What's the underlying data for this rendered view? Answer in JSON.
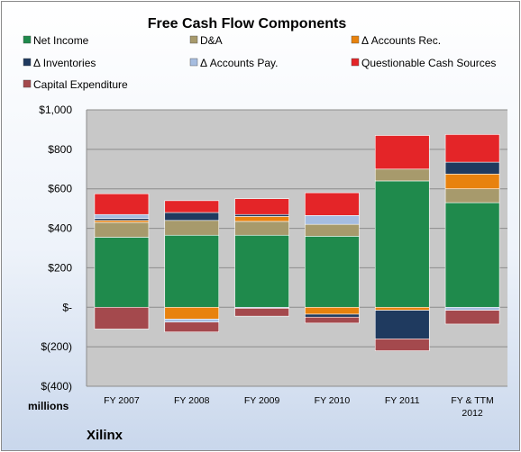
{
  "chart_data": {
    "type": "bar",
    "stacked": true,
    "title": "Free Cash Flow Components",
    "units_label": "millions",
    "company": "Xilinx",
    "grid": true,
    "legend_position": "top",
    "ylim": [
      -400,
      1000
    ],
    "yticks": [
      {
        "value": 1000,
        "label": "$1,000"
      },
      {
        "value": 800,
        "label": "$800"
      },
      {
        "value": 600,
        "label": "$600"
      },
      {
        "value": 400,
        "label": "$400"
      },
      {
        "value": 200,
        "label": "$200"
      },
      {
        "value": 0,
        "label": "$-"
      },
      {
        "value": -200,
        "label": "$(200)"
      },
      {
        "value": -400,
        "label": "$(400)"
      }
    ],
    "categories": [
      {
        "lines": [
          "FY 2007"
        ]
      },
      {
        "lines": [
          "FY 2008"
        ]
      },
      {
        "lines": [
          "FY 2009"
        ]
      },
      {
        "lines": [
          "FY 2010"
        ]
      },
      {
        "lines": [
          "FY 2011"
        ]
      },
      {
        "lines": [
          "FY & TTM",
          "2012"
        ]
      }
    ],
    "series": [
      {
        "name": "Net Income",
        "color": "#1f8a4c",
        "values": [
          355,
          365,
          365,
          360,
          640,
          530
        ]
      },
      {
        "name": "D&A",
        "color": "#a79a6c",
        "values": [
          75,
          75,
          70,
          60,
          60,
          70
        ]
      },
      {
        "name": "Δ Accounts Rec.",
        "color": "#e8820e",
        "values": [
          10,
          -60,
          25,
          -35,
          -15,
          75
        ]
      },
      {
        "name": "Δ Inventories",
        "color": "#1f3a5f",
        "values": [
          10,
          40,
          10,
          -15,
          -145,
          60
        ]
      },
      {
        "name": "Δ Accounts Pay.",
        "color": "#a6bde0",
        "values": [
          20,
          -15,
          -5,
          45,
          0,
          -15
        ]
      },
      {
        "name": "Questionable Cash Sources",
        "color": "#e42528",
        "values": [
          105,
          60,
          80,
          115,
          170,
          140
        ]
      },
      {
        "name": "Capital Expenditure",
        "color": "#a4494d",
        "values": [
          -110,
          -50,
          -40,
          -30,
          -60,
          -70
        ]
      }
    ]
  }
}
